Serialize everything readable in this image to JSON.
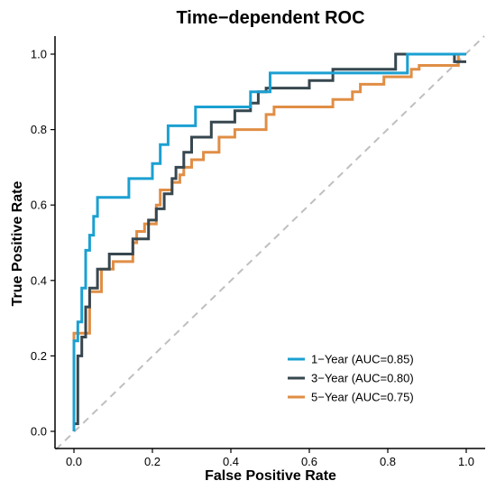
{
  "chart_data": {
    "type": "line",
    "title": "Time−dependent ROC",
    "xlabel": "False Positive Rate",
    "ylabel": "True Positive Rate",
    "xlim": [
      0,
      1
    ],
    "ylim": [
      0,
      1
    ],
    "xticks": [
      0.0,
      0.2,
      0.4,
      0.6,
      0.8,
      1.0
    ],
    "yticks": [
      0.0,
      0.2,
      0.4,
      0.6,
      0.8,
      1.0
    ],
    "tick_labels": [
      "0.0",
      "0.2",
      "0.4",
      "0.6",
      "0.8",
      "1.0"
    ],
    "grid": false,
    "legend_position": "bottom-right",
    "reference_line": {
      "from": [
        0,
        0
      ],
      "to": [
        1,
        1
      ],
      "style": "dashed",
      "color": "#bfbfbf"
    },
    "series": [
      {
        "name": "1−Year (AUC=0.85)",
        "color": "#1ba0d1",
        "points": [
          [
            0.0,
            0.0
          ],
          [
            0.0,
            0.24
          ],
          [
            0.01,
            0.24
          ],
          [
            0.01,
            0.29
          ],
          [
            0.02,
            0.29
          ],
          [
            0.02,
            0.38
          ],
          [
            0.03,
            0.38
          ],
          [
            0.03,
            0.48
          ],
          [
            0.04,
            0.48
          ],
          [
            0.04,
            0.52
          ],
          [
            0.05,
            0.52
          ],
          [
            0.05,
            0.57
          ],
          [
            0.06,
            0.57
          ],
          [
            0.06,
            0.62
          ],
          [
            0.14,
            0.62
          ],
          [
            0.14,
            0.67
          ],
          [
            0.2,
            0.67
          ],
          [
            0.2,
            0.71
          ],
          [
            0.22,
            0.71
          ],
          [
            0.22,
            0.76
          ],
          [
            0.24,
            0.76
          ],
          [
            0.24,
            0.81
          ],
          [
            0.31,
            0.81
          ],
          [
            0.31,
            0.86
          ],
          [
            0.45,
            0.86
          ],
          [
            0.45,
            0.9
          ],
          [
            0.5,
            0.9
          ],
          [
            0.5,
            0.95
          ],
          [
            0.85,
            0.95
          ],
          [
            0.85,
            1.0
          ],
          [
            1.0,
            1.0
          ]
        ]
      },
      {
        "name": "3−Year (AUC=0.80)",
        "color": "#37474f",
        "points": [
          [
            0.0,
            0.0
          ],
          [
            0.0,
            0.02
          ],
          [
            0.01,
            0.02
          ],
          [
            0.01,
            0.2
          ],
          [
            0.02,
            0.2
          ],
          [
            0.02,
            0.25
          ],
          [
            0.03,
            0.25
          ],
          [
            0.03,
            0.33
          ],
          [
            0.04,
            0.33
          ],
          [
            0.04,
            0.38
          ],
          [
            0.06,
            0.38
          ],
          [
            0.06,
            0.43
          ],
          [
            0.09,
            0.43
          ],
          [
            0.09,
            0.47
          ],
          [
            0.15,
            0.47
          ],
          [
            0.15,
            0.51
          ],
          [
            0.19,
            0.51
          ],
          [
            0.19,
            0.56
          ],
          [
            0.21,
            0.56
          ],
          [
            0.21,
            0.59
          ],
          [
            0.23,
            0.59
          ],
          [
            0.23,
            0.63
          ],
          [
            0.25,
            0.63
          ],
          [
            0.25,
            0.67
          ],
          [
            0.26,
            0.67
          ],
          [
            0.26,
            0.7
          ],
          [
            0.28,
            0.7
          ],
          [
            0.28,
            0.74
          ],
          [
            0.3,
            0.74
          ],
          [
            0.3,
            0.78
          ],
          [
            0.35,
            0.78
          ],
          [
            0.35,
            0.82
          ],
          [
            0.41,
            0.82
          ],
          [
            0.41,
            0.85
          ],
          [
            0.45,
            0.85
          ],
          [
            0.45,
            0.87
          ],
          [
            0.47,
            0.87
          ],
          [
            0.47,
            0.9
          ],
          [
            0.49,
            0.9
          ],
          [
            0.49,
            0.91
          ],
          [
            0.6,
            0.91
          ],
          [
            0.6,
            0.93
          ],
          [
            0.66,
            0.93
          ],
          [
            0.66,
            0.96
          ],
          [
            0.82,
            0.96
          ],
          [
            0.82,
            1.0
          ],
          [
            0.97,
            1.0
          ],
          [
            0.97,
            0.98
          ],
          [
            1.0,
            0.98
          ]
        ]
      },
      {
        "name": "5−Year (AUC=0.75)",
        "color": "#e08e45",
        "points": [
          [
            0.0,
            0.0
          ],
          [
            0.0,
            0.26
          ],
          [
            0.04,
            0.26
          ],
          [
            0.04,
            0.37
          ],
          [
            0.07,
            0.37
          ],
          [
            0.07,
            0.43
          ],
          [
            0.1,
            0.43
          ],
          [
            0.1,
            0.45
          ],
          [
            0.15,
            0.45
          ],
          [
            0.15,
            0.5
          ],
          [
            0.16,
            0.5
          ],
          [
            0.16,
            0.53
          ],
          [
            0.18,
            0.53
          ],
          [
            0.18,
            0.55
          ],
          [
            0.21,
            0.55
          ],
          [
            0.21,
            0.6
          ],
          [
            0.22,
            0.6
          ],
          [
            0.22,
            0.64
          ],
          [
            0.25,
            0.64
          ],
          [
            0.25,
            0.66
          ],
          [
            0.27,
            0.66
          ],
          [
            0.27,
            0.68
          ],
          [
            0.28,
            0.68
          ],
          [
            0.28,
            0.7
          ],
          [
            0.3,
            0.7
          ],
          [
            0.3,
            0.72
          ],
          [
            0.33,
            0.72
          ],
          [
            0.33,
            0.74
          ],
          [
            0.37,
            0.74
          ],
          [
            0.37,
            0.78
          ],
          [
            0.41,
            0.78
          ],
          [
            0.41,
            0.8
          ],
          [
            0.49,
            0.8
          ],
          [
            0.49,
            0.84
          ],
          [
            0.51,
            0.84
          ],
          [
            0.51,
            0.86
          ],
          [
            0.66,
            0.86
          ],
          [
            0.66,
            0.88
          ],
          [
            0.71,
            0.88
          ],
          [
            0.71,
            0.9
          ],
          [
            0.73,
            0.9
          ],
          [
            0.73,
            0.92
          ],
          [
            0.79,
            0.92
          ],
          [
            0.79,
            0.94
          ],
          [
            0.86,
            0.94
          ],
          [
            0.86,
            0.96
          ],
          [
            0.88,
            0.96
          ],
          [
            0.88,
            0.97
          ],
          [
            0.98,
            0.97
          ],
          [
            0.98,
            1.0
          ],
          [
            1.0,
            1.0
          ]
        ]
      }
    ]
  }
}
